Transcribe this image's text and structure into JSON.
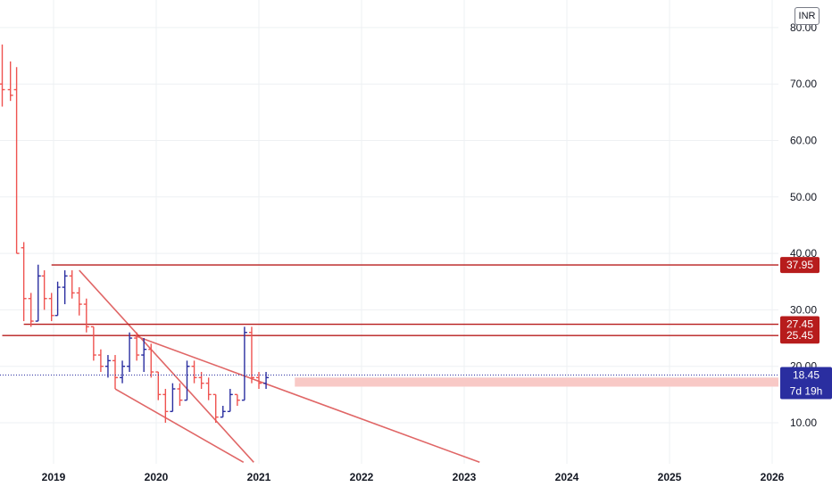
{
  "currency": "INR",
  "chart_data": {
    "type": "bar",
    "y_ticks": [
      "10.00",
      "20.00",
      "30.00",
      "40.00",
      "50.00",
      "60.00",
      "70.00",
      "80.00"
    ],
    "x_ticks": [
      "2019",
      "2020",
      "2021",
      "2022",
      "2023",
      "2024",
      "2025",
      "2026"
    ],
    "ylim": [
      3,
      85
    ],
    "xlim": [
      2018.5,
      2026.1
    ],
    "grid": true,
    "bars": [
      {
        "t": 2018.5,
        "o": 70,
        "h": 77,
        "l": 66,
        "c": 69
      },
      {
        "t": 2018.58,
        "o": 69,
        "h": 74,
        "l": 67,
        "c": 68
      },
      {
        "t": 2018.64,
        "o": 69,
        "h": 73,
        "l": 40,
        "c": 40
      },
      {
        "t": 2018.71,
        "o": 41,
        "h": 42,
        "l": 28,
        "c": 32
      },
      {
        "t": 2018.78,
        "o": 32,
        "h": 33,
        "l": 27,
        "c": 28
      },
      {
        "t": 2018.85,
        "o": 28,
        "h": 38,
        "l": 28,
        "c": 36
      },
      {
        "t": 2018.91,
        "o": 36,
        "h": 37,
        "l": 30,
        "c": 32
      },
      {
        "t": 2018.98,
        "o": 32,
        "h": 33,
        "l": 28,
        "c": 29
      },
      {
        "t": 2019.04,
        "o": 29,
        "h": 35,
        "l": 29,
        "c": 34
      },
      {
        "t": 2019.11,
        "o": 34,
        "h": 37,
        "l": 31,
        "c": 36
      },
      {
        "t": 2019.18,
        "o": 36,
        "h": 37,
        "l": 32,
        "c": 33
      },
      {
        "t": 2019.25,
        "o": 33,
        "h": 34,
        "l": 29,
        "c": 31
      },
      {
        "t": 2019.32,
        "o": 31,
        "h": 32,
        "l": 26,
        "c": 27
      },
      {
        "t": 2019.39,
        "o": 27,
        "h": 27,
        "l": 21,
        "c": 22
      },
      {
        "t": 2019.46,
        "o": 22,
        "h": 23,
        "l": 19,
        "c": 20
      },
      {
        "t": 2019.53,
        "o": 20,
        "h": 22,
        "l": 18,
        "c": 21
      },
      {
        "t": 2019.6,
        "o": 21,
        "h": 22,
        "l": 16,
        "c": 18
      },
      {
        "t": 2019.67,
        "o": 18,
        "h": 21,
        "l": 17,
        "c": 20
      },
      {
        "t": 2019.74,
        "o": 20,
        "h": 26,
        "l": 19,
        "c": 25
      },
      {
        "t": 2019.81,
        "o": 25,
        "h": 26,
        "l": 21,
        "c": 22
      },
      {
        "t": 2019.88,
        "o": 22,
        "h": 25,
        "l": 19,
        "c": 23
      },
      {
        "t": 2019.95,
        "o": 23,
        "h": 24,
        "l": 18,
        "c": 19
      },
      {
        "t": 2020.02,
        "o": 19,
        "h": 19,
        "l": 14,
        "c": 15
      },
      {
        "t": 2020.09,
        "o": 15,
        "h": 16,
        "l": 10,
        "c": 12
      },
      {
        "t": 2020.16,
        "o": 12,
        "h": 17,
        "l": 12,
        "c": 16
      },
      {
        "t": 2020.23,
        "o": 16,
        "h": 17,
        "l": 13,
        "c": 14
      },
      {
        "t": 2020.3,
        "o": 14,
        "h": 21,
        "l": 14,
        "c": 20
      },
      {
        "t": 2020.37,
        "o": 20,
        "h": 21,
        "l": 17,
        "c": 18
      },
      {
        "t": 2020.44,
        "o": 18,
        "h": 19,
        "l": 16,
        "c": 17
      },
      {
        "t": 2020.51,
        "o": 17,
        "h": 18,
        "l": 14,
        "c": 15
      },
      {
        "t": 2020.58,
        "o": 15,
        "h": 15,
        "l": 10,
        "c": 11
      },
      {
        "t": 2020.65,
        "o": 11,
        "h": 13,
        "l": 11,
        "c": 12
      },
      {
        "t": 2020.72,
        "o": 12,
        "h": 16,
        "l": 12,
        "c": 15
      },
      {
        "t": 2020.79,
        "o": 15,
        "h": 15,
        "l": 13,
        "c": 14
      },
      {
        "t": 2020.86,
        "o": 14,
        "h": 27,
        "l": 14,
        "c": 26
      },
      {
        "t": 2020.93,
        "o": 26,
        "h": 27,
        "l": 17,
        "c": 18
      },
      {
        "t": 2021.0,
        "o": 18,
        "h": 19,
        "l": 16,
        "c": 17
      },
      {
        "t": 2021.07,
        "o": 17,
        "h": 19,
        "l": 16,
        "c": 18
      }
    ],
    "horizontal_levels": [
      {
        "value": 37.95,
        "label": "37.95",
        "from_t": 2018.98
      },
      {
        "value": 27.45,
        "label": "27.45",
        "from_t": 2018.71
      },
      {
        "value": 25.45,
        "label": "25.45",
        "from_t": 2018.5
      }
    ],
    "current_price": {
      "value": 18.45,
      "label": "18.45",
      "countdown": "7d 19h"
    },
    "zone": {
      "from_t": 2021.35,
      "to_t": 2026.1,
      "low": 16.4,
      "high": 18.0
    },
    "trendlines": [
      {
        "from": [
          2019.25,
          37
        ],
        "to": [
          2020.95,
          3
        ]
      },
      {
        "from": [
          2019.6,
          16
        ],
        "to": [
          2020.85,
          3
        ]
      },
      {
        "from": [
          2019.78,
          25.5
        ],
        "to": [
          2023.15,
          3
        ]
      }
    ],
    "colors": {
      "up": "#2a2ea0",
      "down": "#ef5350",
      "level": "#b71c1c",
      "trend": "#e06666",
      "zone": "#f8c9c6",
      "current": "#2a2ea0",
      "grid": "#eef0f3",
      "axis_text": "#131722"
    }
  }
}
